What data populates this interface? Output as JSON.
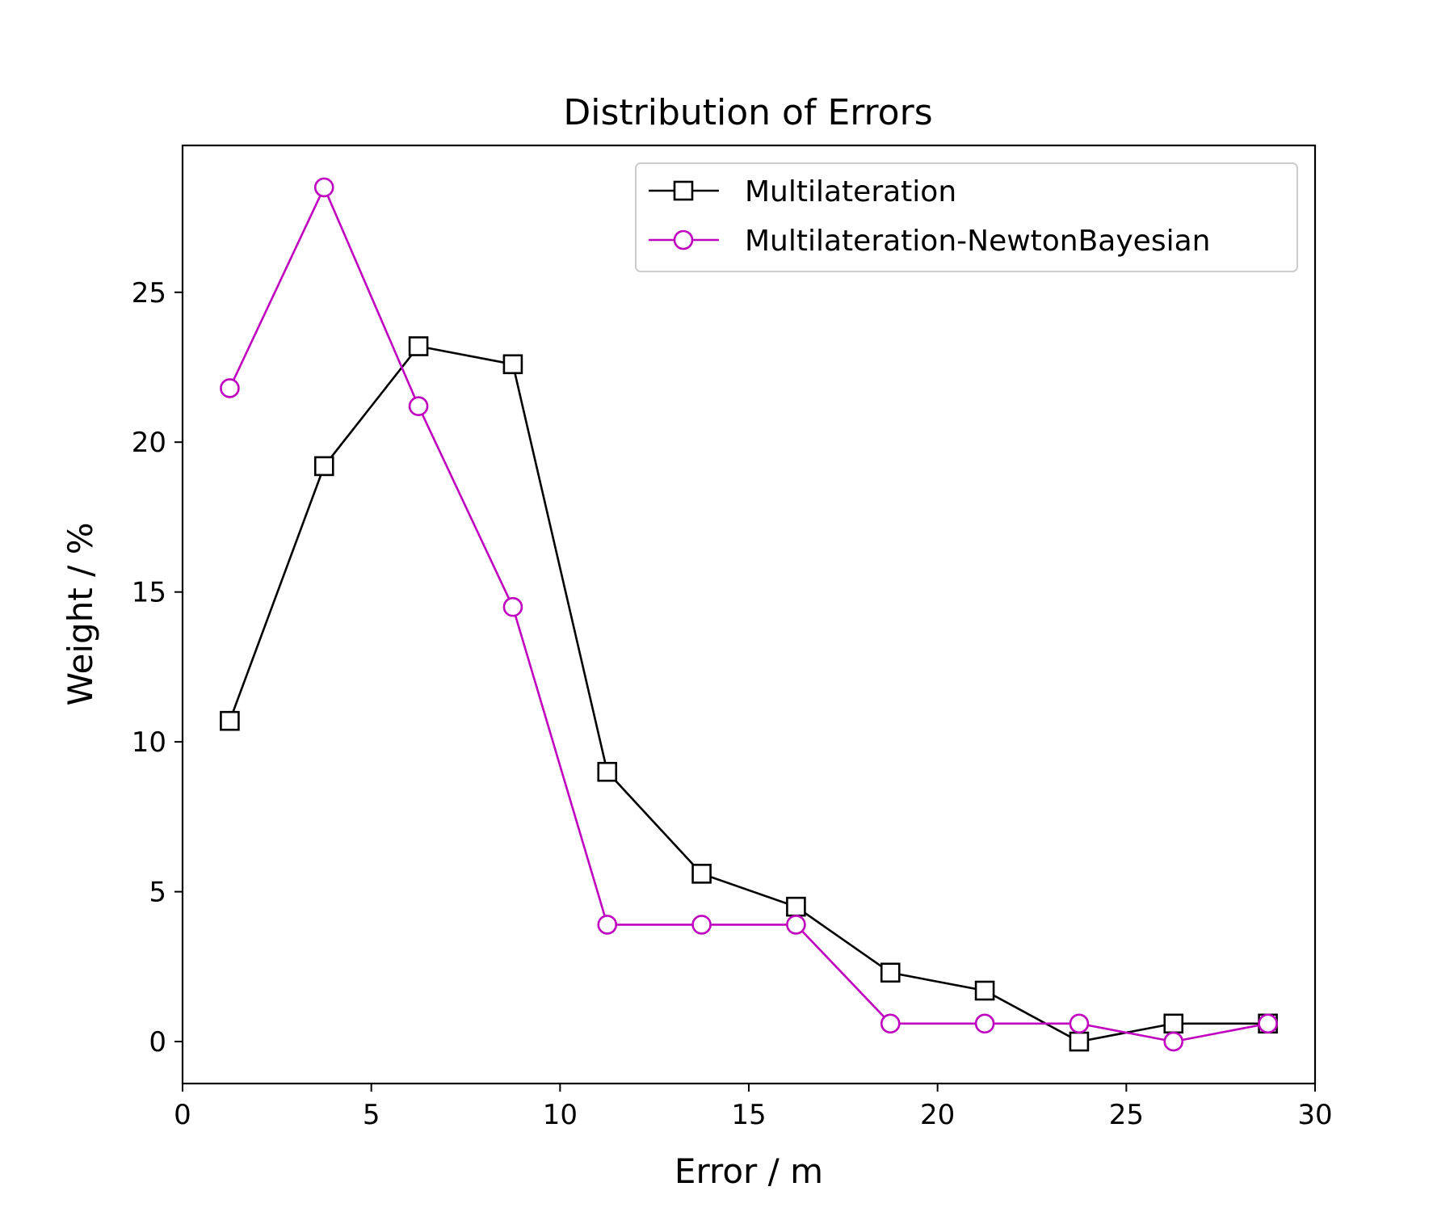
{
  "chart_data": {
    "type": "line",
    "title": "Distribution of Errors",
    "xlabel": "Error / m",
    "ylabel": "Weight / %",
    "xlim": [
      0,
      30
    ],
    "ylim": [
      -1.4,
      29.9
    ],
    "xticks": [
      0,
      5,
      10,
      15,
      20,
      25,
      30
    ],
    "yticks": [
      0,
      5,
      10,
      15,
      20,
      25
    ],
    "grid": false,
    "legend_position": "top-right",
    "x": [
      1.25,
      3.75,
      6.25,
      8.75,
      11.25,
      13.75,
      16.25,
      18.75,
      21.25,
      23.75,
      26.25,
      28.75
    ],
    "series": [
      {
        "name": "Multilateration",
        "color": "#000000",
        "marker": "square",
        "values": [
          10.7,
          19.2,
          23.2,
          22.6,
          9.0,
          5.6,
          4.5,
          2.3,
          1.7,
          0.0,
          0.6,
          0.6
        ]
      },
      {
        "name": "Multilateration-NewtonBayesian",
        "color": "#bf00bf",
        "marker": "circle",
        "values": [
          21.8,
          28.5,
          21.2,
          14.5,
          3.9,
          3.9,
          3.9,
          0.6,
          0.6,
          0.6,
          0.0,
          0.6
        ]
      }
    ]
  }
}
